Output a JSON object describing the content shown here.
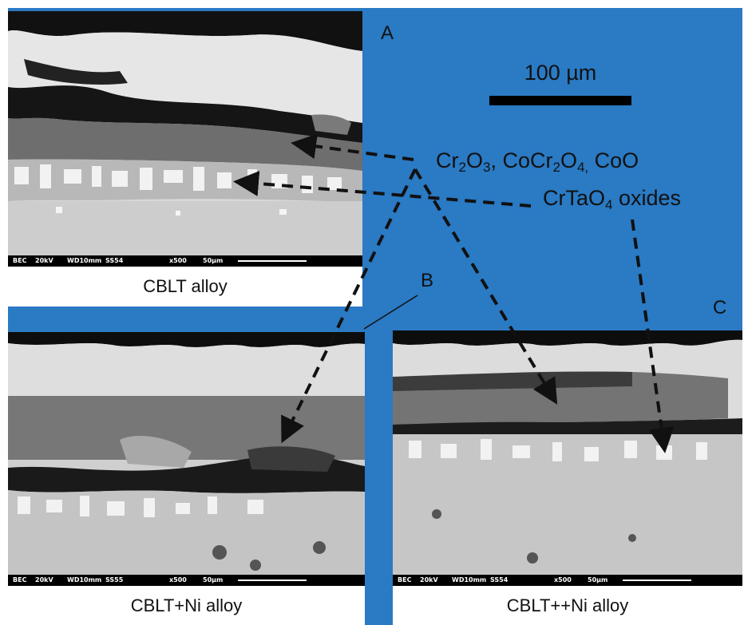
{
  "panels": {
    "a": {
      "label": "A",
      "caption": "CBLT alloy",
      "databar": {
        "mode": "BEC",
        "kv": "20kV",
        "wd": "WD10mm",
        "sample": "SS54",
        "mag": "x500",
        "scale": "50µm"
      }
    },
    "b": {
      "label": "B",
      "caption": "CBLT+Ni alloy",
      "databar": {
        "mode": "BEC",
        "kv": "20kV",
        "wd": "WD10mm",
        "sample": "SS55",
        "mag": "x500",
        "scale": "50µm"
      }
    },
    "c": {
      "label": "C",
      "caption": "CBLT++Ni alloy",
      "databar": {
        "mode": "BEC",
        "kv": "20kV",
        "wd": "WD10mm",
        "sample": "SS54",
        "mag": "x500",
        "scale": "50µm"
      }
    }
  },
  "scale_bar": {
    "label": "100 µm"
  },
  "annotations": {
    "oxides_line1": {
      "parts": [
        "Cr",
        "2",
        "O",
        "3",
        ", CoCr",
        "2",
        "O",
        "4,",
        " CoO"
      ]
    },
    "oxides_line2": {
      "parts": [
        "CrTaO",
        "4",
        " oxides"
      ]
    }
  },
  "colors": {
    "background": "#2a7ac4",
    "arrow": "#111111"
  }
}
